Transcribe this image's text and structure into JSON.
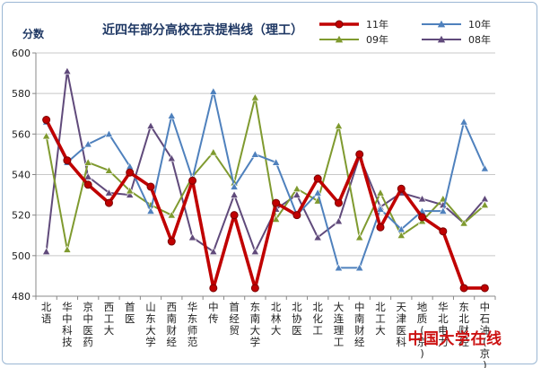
{
  "chart_data": {
    "type": "line",
    "title": "近四年部分高校在京提档线（理工）",
    "ylabel": "分数",
    "xlabel": "",
    "ylim": [
      480,
      600
    ],
    "yticks": [
      480,
      500,
      520,
      540,
      560,
      580,
      600
    ],
    "grid": true,
    "legend_position": "top-right",
    "categories": [
      "北语",
      "华中科技",
      "京中医药",
      "西工大",
      "首医",
      "山东大学",
      "西南财经",
      "华东师范",
      "中传",
      "首经贸",
      "东南大学",
      "北林大",
      "北协医",
      "北化工",
      "大连理工",
      "中南财经",
      "北工大",
      "天津医科",
      "地质(京)",
      "华北电力",
      "东北财经",
      "中石油(京)"
    ],
    "series": [
      {
        "name": "11年",
        "color": "#c00000",
        "marker": "circle",
        "values": [
          567,
          547,
          535,
          526,
          541,
          534,
          507,
          537,
          484,
          520,
          484,
          526,
          520,
          538,
          526,
          550,
          514,
          533,
          519,
          512,
          484,
          484
        ]
      },
      {
        "name": "10年",
        "color": "#4f81bd",
        "marker": "triangle",
        "values": [
          566,
          546,
          555,
          560,
          544,
          522,
          569,
          538,
          581,
          534,
          550,
          546,
          520,
          531,
          494,
          494,
          523,
          513,
          522,
          522,
          566,
          543
        ]
      },
      {
        "name": "09年",
        "color": "#7f9a2f",
        "marker": "triangle",
        "values": [
          559,
          503,
          546,
          542,
          532,
          525,
          520,
          539,
          551,
          536,
          578,
          518,
          533,
          527,
          564,
          509,
          531,
          510,
          517,
          528,
          516,
          525
        ]
      },
      {
        "name": "08年",
        "color": "#604a7b",
        "marker": "triangle",
        "values": [
          502,
          591,
          539,
          531,
          530,
          564,
          548,
          509,
          502,
          530,
          502,
          523,
          530,
          509,
          517,
          549,
          524,
          531,
          528,
          525,
          516,
          528
        ]
      }
    ]
  },
  "watermark": "中国大学在线"
}
